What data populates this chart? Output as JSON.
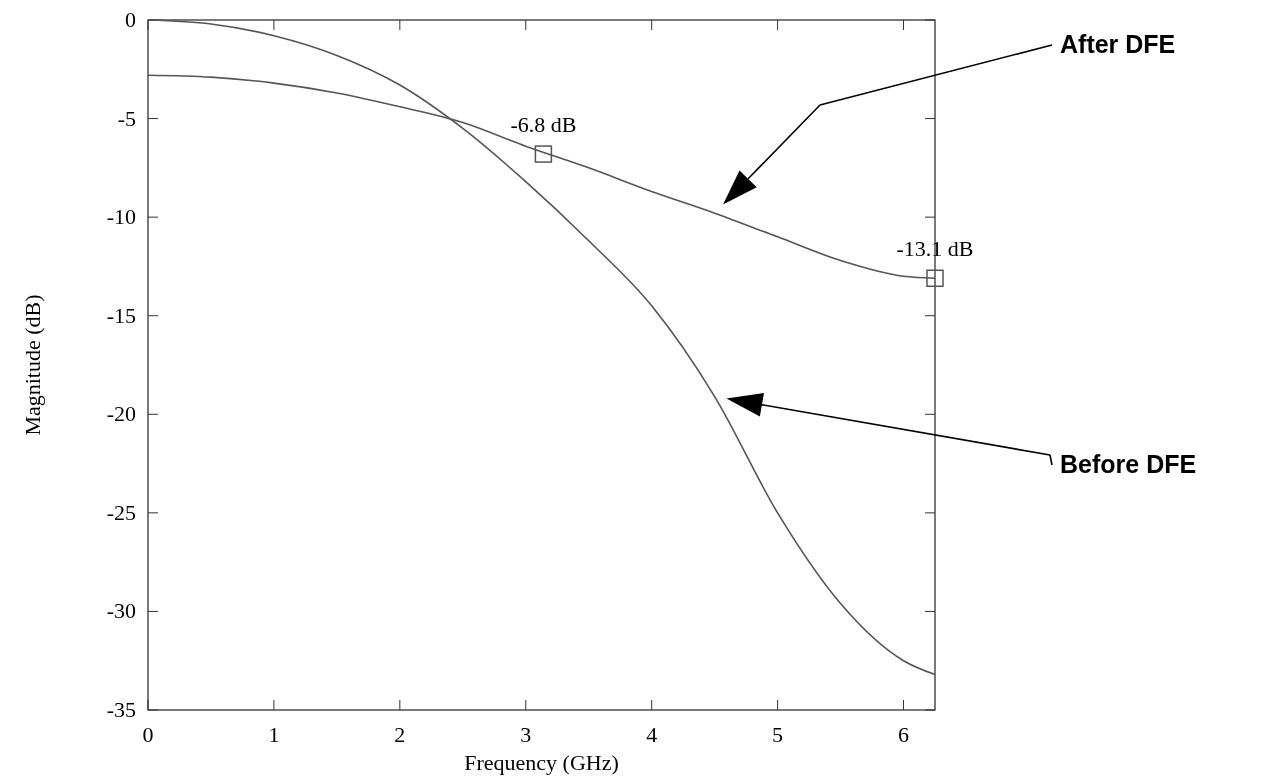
{
  "chart_data": {
    "type": "line",
    "xlabel": "Frequency (GHz)",
    "ylabel": "Magnitude (dB)",
    "xlim": [
      0,
      6.25
    ],
    "ylim": [
      -35,
      0
    ],
    "xticks": [
      0,
      1,
      2,
      3,
      4,
      5,
      6
    ],
    "yticks": [
      -35,
      -30,
      -25,
      -20,
      -15,
      -10,
      -5,
      0
    ],
    "grid": false,
    "legend": false,
    "marker": "none",
    "line_style": "solid",
    "series": [
      {
        "name": "After DFE",
        "color": "#555555",
        "x": [
          0,
          0.5,
          1,
          1.5,
          2,
          2.5,
          3,
          3.5,
          4,
          4.5,
          5,
          5.5,
          6,
          6.25
        ],
        "values": [
          -2.8,
          -2.9,
          -3.2,
          -3.7,
          -4.4,
          -5.2,
          -6.4,
          -7.5,
          -8.7,
          -9.8,
          -11.0,
          -12.2,
          -13.0,
          -13.1
        ]
      },
      {
        "name": "Before DFE",
        "color": "#555555",
        "x": [
          0,
          0.5,
          1,
          1.5,
          2,
          2.5,
          3,
          3.5,
          4,
          4.5,
          5,
          5.5,
          6,
          6.25
        ],
        "values": [
          0,
          -0.2,
          -0.8,
          -1.8,
          -3.3,
          -5.5,
          -8.2,
          -11.2,
          -14.5,
          -19.1,
          -25.0,
          -29.6,
          -32.5,
          -33.2
        ]
      },
      {
        "type": "scatter",
        "marker": "square",
        "color": "#555555",
        "x": [
          3.14,
          6.25
        ],
        "values": [
          -6.8,
          -13.1
        ]
      }
    ],
    "annotations": [
      {
        "text": "-6.8 dB",
        "x": 3.14,
        "y": -6.8
      },
      {
        "text": "-13.1 dB",
        "x": 6.25,
        "y": -13.1
      }
    ]
  }
}
